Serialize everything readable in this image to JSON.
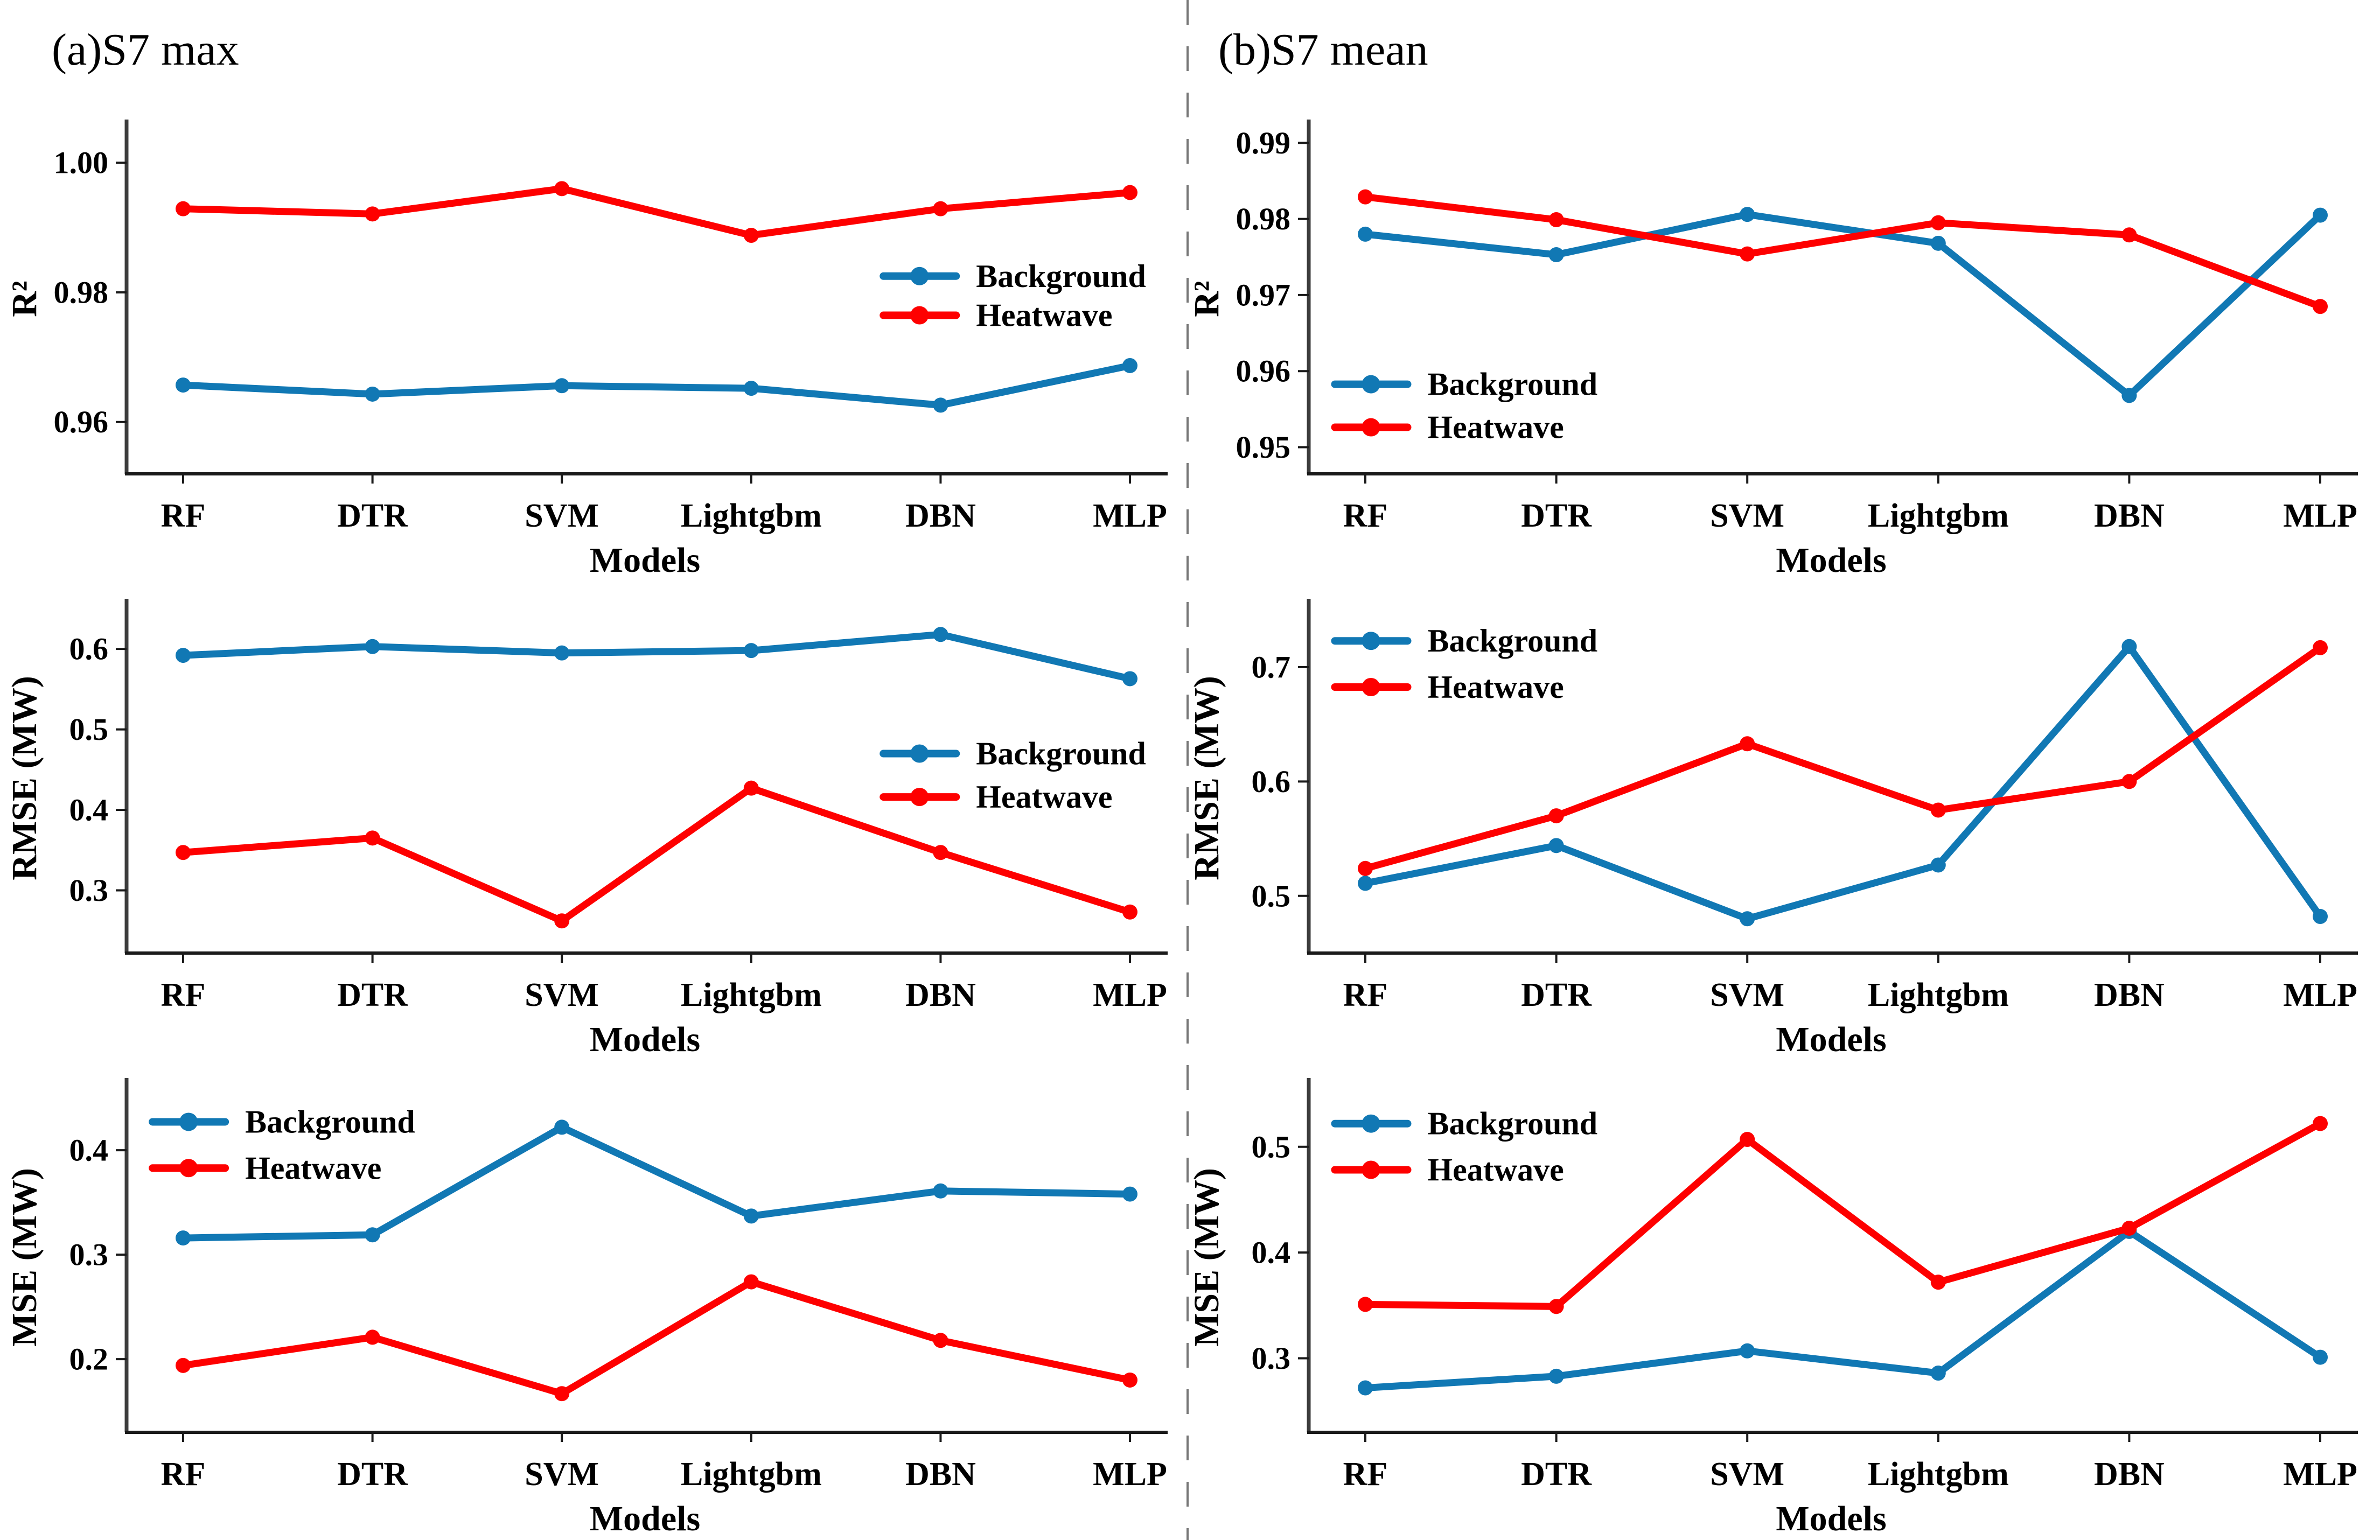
{
  "titles": [
    {
      "label": "(a)S7 max"
    },
    {
      "label": "(b)S7 mean"
    }
  ],
  "colors": {
    "background_series": "#1178b4",
    "heatwave_series": "#fe0000",
    "axis": "#1a1a1a",
    "divider": "#777777"
  },
  "chart_data": [
    {
      "id": "a-r2",
      "type": "line",
      "column": "left",
      "title": "(a)S7 max",
      "ylabel": "R²",
      "xlabel": "Models",
      "categories": [
        "RF",
        "DTR",
        "SVM",
        "Lightgbm",
        "DBN",
        "MLP"
      ],
      "ylim": [
        0.952,
        1.006
      ],
      "yticks": [
        0.96,
        0.98,
        1.0
      ],
      "ytick_labels": [
        "0.96",
        "0.98",
        "1.00"
      ],
      "grid": false,
      "legend": {
        "x": 0.73,
        "y": 0.435,
        "gap": 0.112
      },
      "series": [
        {
          "name": "Background",
          "color": "#1178b4",
          "values": [
            0.9657,
            0.9643,
            0.9656,
            0.9652,
            0.9626,
            0.9687
          ]
        },
        {
          "name": "Heatwave",
          "color": "#fe0000",
          "values": [
            0.9929,
            0.9921,
            0.996,
            0.9888,
            0.9929,
            0.9954
          ]
        }
      ]
    },
    {
      "id": "b-r2",
      "type": "line",
      "column": "right",
      "title": "(b)S7 mean",
      "ylabel": "R²",
      "xlabel": "Models",
      "categories": [
        "RF",
        "DTR",
        "SVM",
        "Lightgbm",
        "DBN",
        "MLP"
      ],
      "ylim": [
        0.9465,
        0.9925
      ],
      "yticks": [
        0.95,
        0.96,
        0.97,
        0.98,
        0.99
      ],
      "ytick_labels": [
        "0.95",
        "0.96",
        "0.97",
        "0.98",
        "0.99"
      ],
      "grid": false,
      "legend": {
        "x": 0.025,
        "y": 0.744,
        "gap": 0.123
      },
      "series": [
        {
          "name": "Background",
          "color": "#1178b4",
          "values": [
            0.978,
            0.9753,
            0.9806,
            0.9768,
            0.9568,
            0.9805
          ]
        },
        {
          "name": "Heatwave",
          "color": "#fe0000",
          "values": [
            0.9829,
            0.9799,
            0.9754,
            0.9795,
            0.9779,
            0.9685
          ]
        }
      ]
    },
    {
      "id": "a-rmse",
      "type": "line",
      "column": "left",
      "title": "(a)S7 max",
      "ylabel": "RMSE (MW)",
      "xlabel": "Models",
      "categories": [
        "RF",
        "DTR",
        "SVM",
        "Lightgbm",
        "DBN",
        "MLP"
      ],
      "ylim": [
        0.222,
        0.657
      ],
      "yticks": [
        0.3,
        0.4,
        0.5,
        0.6
      ],
      "ytick_labels": [
        "0.3",
        "0.4",
        "0.5",
        "0.6"
      ],
      "grid": false,
      "legend": {
        "x": 0.73,
        "y": 0.43,
        "gap": 0.124
      },
      "series": [
        {
          "name": "Background",
          "color": "#1178b4",
          "values": [
            0.592,
            0.603,
            0.595,
            0.598,
            0.618,
            0.563
          ]
        },
        {
          "name": "Heatwave",
          "color": "#fe0000",
          "values": [
            0.347,
            0.365,
            0.262,
            0.427,
            0.347,
            0.273
          ]
        }
      ]
    },
    {
      "id": "b-rmse",
      "type": "line",
      "column": "right",
      "title": "(b)S7 mean",
      "ylabel": "RMSE (MW)",
      "xlabel": "Models",
      "categories": [
        "RF",
        "DTR",
        "SVM",
        "Lightgbm",
        "DBN",
        "MLP"
      ],
      "ylim": [
        0.45,
        0.756
      ],
      "yticks": [
        0.5,
        0.6,
        0.7
      ],
      "ytick_labels": [
        "0.5",
        "0.6",
        "0.7"
      ],
      "grid": false,
      "legend": {
        "x": 0.025,
        "y": 0.108,
        "gap": 0.132
      },
      "series": [
        {
          "name": "Background",
          "color": "#1178b4",
          "values": [
            0.511,
            0.544,
            0.48,
            0.527,
            0.718,
            0.482
          ]
        },
        {
          "name": "Heatwave",
          "color": "#fe0000",
          "values": [
            0.524,
            0.57,
            0.633,
            0.575,
            0.6,
            0.717
          ]
        }
      ]
    },
    {
      "id": "a-mse",
      "type": "line",
      "column": "left",
      "title": "(a)S7 max",
      "ylabel": "MSE (MW)",
      "xlabel": "Models",
      "categories": [
        "RF",
        "DTR",
        "SVM",
        "Lightgbm",
        "DBN",
        "MLP"
      ],
      "ylim": [
        0.13,
        0.465
      ],
      "yticks": [
        0.2,
        0.3,
        0.4
      ],
      "ytick_labels": [
        "0.2",
        "0.3",
        "0.4"
      ],
      "grid": false,
      "legend": {
        "x": 0.025,
        "y": 0.113,
        "gap": 0.132
      },
      "series": [
        {
          "name": "Background",
          "color": "#1178b4",
          "values": [
            0.316,
            0.319,
            0.422,
            0.337,
            0.361,
            0.358
          ]
        },
        {
          "name": "Heatwave",
          "color": "#fe0000",
          "values": [
            0.194,
            0.221,
            0.167,
            0.274,
            0.218,
            0.18
          ]
        }
      ]
    },
    {
      "id": "b-mse",
      "type": "line",
      "column": "right",
      "title": "(b)S7 mean",
      "ylabel": "MSE (MW)",
      "xlabel": "Models",
      "categories": [
        "RF",
        "DTR",
        "SVM",
        "Lightgbm",
        "DBN",
        "MLP"
      ],
      "ylim": [
        0.23,
        0.561
      ],
      "yticks": [
        0.3,
        0.4,
        0.5
      ],
      "ytick_labels": [
        "0.3",
        "0.4",
        "0.5"
      ],
      "grid": false,
      "legend": {
        "x": 0.025,
        "y": 0.118,
        "gap": 0.132
      },
      "series": [
        {
          "name": "Background",
          "color": "#1178b4",
          "values": [
            0.272,
            0.283,
            0.307,
            0.286,
            0.42,
            0.301
          ]
        },
        {
          "name": "Heatwave",
          "color": "#fe0000",
          "values": [
            0.351,
            0.349,
            0.507,
            0.372,
            0.423,
            0.522
          ]
        }
      ]
    }
  ]
}
